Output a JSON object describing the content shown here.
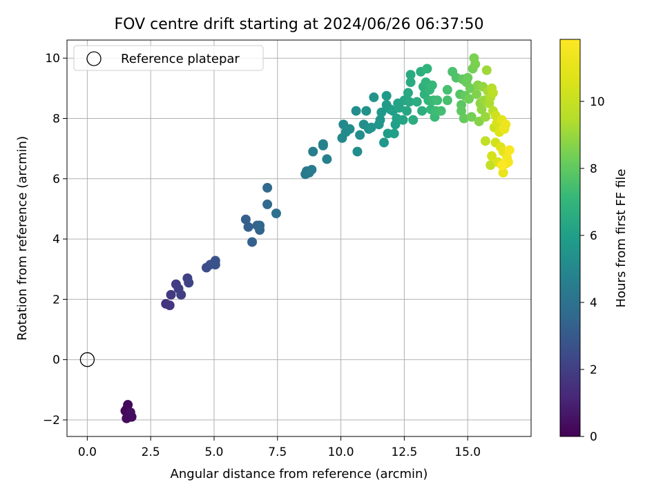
{
  "chart_data": {
    "type": "scatter",
    "title": "FOV centre drift starting at 2024/06/26 06:37:50",
    "xlabel": "Angular distance from reference (arcmin)",
    "ylabel": "Rotation from reference (arcmin)",
    "xlim": [
      -0.8,
      17.5
    ],
    "ylim": [
      -2.55,
      10.6
    ],
    "xticks": [
      0.0,
      2.5,
      5.0,
      7.5,
      10.0,
      12.5,
      15.0
    ],
    "xtick_labels": [
      "0.0",
      "2.5",
      "5.0",
      "7.5",
      "10.0",
      "12.5",
      "15.0"
    ],
    "yticks": [
      -2,
      0,
      2,
      4,
      6,
      8,
      10
    ],
    "ytick_labels": [
      "−2",
      "0",
      "2",
      "4",
      "6",
      "8",
      "10"
    ],
    "grid": true,
    "legend": {
      "position": "top-left",
      "entries": [
        "Reference platepar"
      ]
    },
    "reference_point": {
      "x": 0.0,
      "y": 0.0,
      "label": "Reference platepar"
    },
    "colorbar": {
      "label": "Hours from first FF file",
      "colormap": "viridis",
      "range": [
        0,
        11.85
      ],
      "ticks": [
        0,
        2,
        4,
        6,
        8,
        10
      ],
      "tick_labels": [
        "0",
        "2",
        "4",
        "6",
        "8",
        "10"
      ]
    },
    "points": [
      {
        "x": 1.55,
        "y": -1.65,
        "h": 0.1
      },
      {
        "x": 1.65,
        "y": -1.8,
        "h": 0.1
      },
      {
        "x": 1.6,
        "y": -1.5,
        "h": 0.2
      },
      {
        "x": 1.5,
        "y": -1.7,
        "h": 0.2
      },
      {
        "x": 1.55,
        "y": -1.95,
        "h": 0.3
      },
      {
        "x": 1.75,
        "y": -1.9,
        "h": 0.3
      },
      {
        "x": 1.7,
        "y": -1.75,
        "h": 0.35
      },
      {
        "x": 3.1,
        "y": 1.85,
        "h": 1.6
      },
      {
        "x": 3.25,
        "y": 1.8,
        "h": 1.7
      },
      {
        "x": 3.3,
        "y": 2.15,
        "h": 1.8
      },
      {
        "x": 3.5,
        "y": 2.5,
        "h": 1.9
      },
      {
        "x": 3.6,
        "y": 2.35,
        "h": 2.0
      },
      {
        "x": 3.7,
        "y": 2.15,
        "h": 2.0
      },
      {
        "x": 3.95,
        "y": 2.7,
        "h": 2.1
      },
      {
        "x": 4.0,
        "y": 2.55,
        "h": 2.2
      },
      {
        "x": 4.7,
        "y": 3.05,
        "h": 2.5
      },
      {
        "x": 4.85,
        "y": 3.15,
        "h": 2.6
      },
      {
        "x": 5.05,
        "y": 3.15,
        "h": 2.7
      },
      {
        "x": 5.05,
        "y": 3.28,
        "h": 2.7
      },
      {
        "x": 6.25,
        "y": 4.65,
        "h": 3.2
      },
      {
        "x": 6.35,
        "y": 4.4,
        "h": 3.2
      },
      {
        "x": 6.5,
        "y": 3.9,
        "h": 3.3
      },
      {
        "x": 6.7,
        "y": 4.45,
        "h": 3.4
      },
      {
        "x": 6.8,
        "y": 4.3,
        "h": 3.4
      },
      {
        "x": 6.8,
        "y": 4.45,
        "h": 3.5
      },
      {
        "x": 7.1,
        "y": 5.7,
        "h": 3.7
      },
      {
        "x": 7.1,
        "y": 5.15,
        "h": 3.7
      },
      {
        "x": 7.45,
        "y": 4.85,
        "h": 3.9
      },
      {
        "x": 8.6,
        "y": 6.15,
        "h": 4.3
      },
      {
        "x": 8.65,
        "y": 6.25,
        "h": 4.3
      },
      {
        "x": 8.75,
        "y": 6.2,
        "h": 4.4
      },
      {
        "x": 8.85,
        "y": 6.3,
        "h": 4.4
      },
      {
        "x": 8.9,
        "y": 6.9,
        "h": 4.5
      },
      {
        "x": 9.3,
        "y": 7.15,
        "h": 4.6
      },
      {
        "x": 9.3,
        "y": 7.1,
        "h": 4.7
      },
      {
        "x": 9.45,
        "y": 6.65,
        "h": 4.7
      },
      {
        "x": 10.05,
        "y": 7.35,
        "h": 5.0
      },
      {
        "x": 10.1,
        "y": 7.8,
        "h": 5.0
      },
      {
        "x": 10.2,
        "y": 7.55,
        "h": 5.1
      },
      {
        "x": 10.35,
        "y": 7.65,
        "h": 5.1
      },
      {
        "x": 10.6,
        "y": 8.25,
        "h": 5.2
      },
      {
        "x": 10.65,
        "y": 6.9,
        "h": 5.2
      },
      {
        "x": 10.75,
        "y": 7.45,
        "h": 5.3
      },
      {
        "x": 10.9,
        "y": 7.8,
        "h": 5.3
      },
      {
        "x": 11.0,
        "y": 8.25,
        "h": 5.4
      },
      {
        "x": 11.1,
        "y": 7.65,
        "h": 5.4
      },
      {
        "x": 11.2,
        "y": 7.7,
        "h": 5.5
      },
      {
        "x": 11.3,
        "y": 8.7,
        "h": 5.5
      },
      {
        "x": 11.5,
        "y": 7.8,
        "h": 5.6
      },
      {
        "x": 11.55,
        "y": 7.95,
        "h": 5.6
      },
      {
        "x": 11.6,
        "y": 8.2,
        "h": 5.7
      },
      {
        "x": 11.7,
        "y": 7.2,
        "h": 5.7
      },
      {
        "x": 11.8,
        "y": 8.45,
        "h": 5.8
      },
      {
        "x": 11.8,
        "y": 8.75,
        "h": 5.8
      },
      {
        "x": 11.85,
        "y": 7.5,
        "h": 5.9
      },
      {
        "x": 11.95,
        "y": 8.3,
        "h": 5.9
      },
      {
        "x": 12.05,
        "y": 8.25,
        "h": 6.0
      },
      {
        "x": 12.1,
        "y": 7.5,
        "h": 6.0
      },
      {
        "x": 12.15,
        "y": 7.8,
        "h": 6.0
      },
      {
        "x": 12.2,
        "y": 8.0,
        "h": 6.1
      },
      {
        "x": 12.25,
        "y": 8.5,
        "h": 6.1
      },
      {
        "x": 12.3,
        "y": 8.35,
        "h": 6.2
      },
      {
        "x": 12.45,
        "y": 7.95,
        "h": 6.2
      },
      {
        "x": 12.5,
        "y": 8.6,
        "h": 6.3
      },
      {
        "x": 12.6,
        "y": 8.25,
        "h": 6.3
      },
      {
        "x": 12.65,
        "y": 8.85,
        "h": 6.4
      },
      {
        "x": 12.7,
        "y": 8.55,
        "h": 6.4
      },
      {
        "x": 12.75,
        "y": 9.2,
        "h": 6.5
      },
      {
        "x": 12.75,
        "y": 9.45,
        "h": 6.5
      },
      {
        "x": 12.85,
        "y": 7.95,
        "h": 6.6
      },
      {
        "x": 13.0,
        "y": 8.55,
        "h": 6.6
      },
      {
        "x": 13.15,
        "y": 9.55,
        "h": 6.7
      },
      {
        "x": 13.2,
        "y": 8.25,
        "h": 6.7
      },
      {
        "x": 13.25,
        "y": 9.05,
        "h": 6.8
      },
      {
        "x": 13.3,
        "y": 8.8,
        "h": 6.8
      },
      {
        "x": 13.35,
        "y": 9.2,
        "h": 6.9
      },
      {
        "x": 13.4,
        "y": 9.65,
        "h": 6.9
      },
      {
        "x": 13.45,
        "y": 8.6,
        "h": 7.0
      },
      {
        "x": 13.5,
        "y": 8.95,
        "h": 7.0
      },
      {
        "x": 13.55,
        "y": 8.3,
        "h": 7.1
      },
      {
        "x": 13.6,
        "y": 9.1,
        "h": 7.1
      },
      {
        "x": 13.65,
        "y": 8.6,
        "h": 7.2
      },
      {
        "x": 13.7,
        "y": 8.05,
        "h": 7.2
      },
      {
        "x": 13.75,
        "y": 8.25,
        "h": 7.3
      },
      {
        "x": 13.8,
        "y": 8.6,
        "h": 7.3
      },
      {
        "x": 13.95,
        "y": 8.25,
        "h": 7.4
      },
      {
        "x": 14.2,
        "y": 8.6,
        "h": 7.5
      },
      {
        "x": 14.2,
        "y": 8.95,
        "h": 7.5
      },
      {
        "x": 14.4,
        "y": 9.55,
        "h": 7.6
      },
      {
        "x": 14.55,
        "y": 9.35,
        "h": 7.7
      },
      {
        "x": 14.7,
        "y": 8.8,
        "h": 7.8
      },
      {
        "x": 14.75,
        "y": 8.45,
        "h": 7.9
      },
      {
        "x": 14.75,
        "y": 8.25,
        "h": 8.0
      },
      {
        "x": 14.8,
        "y": 9.3,
        "h": 8.0
      },
      {
        "x": 14.85,
        "y": 8.0,
        "h": 8.1
      },
      {
        "x": 14.9,
        "y": 8.75,
        "h": 8.1
      },
      {
        "x": 14.95,
        "y": 9.2,
        "h": 8.2
      },
      {
        "x": 15.0,
        "y": 9.35,
        "h": 8.2
      },
      {
        "x": 15.05,
        "y": 8.65,
        "h": 8.3
      },
      {
        "x": 15.1,
        "y": 9.0,
        "h": 8.3
      },
      {
        "x": 15.15,
        "y": 8.05,
        "h": 8.4
      },
      {
        "x": 15.2,
        "y": 9.65,
        "h": 8.4
      },
      {
        "x": 15.25,
        "y": 10.0,
        "h": 8.5
      },
      {
        "x": 15.3,
        "y": 9.8,
        "h": 8.5
      },
      {
        "x": 15.35,
        "y": 8.8,
        "h": 8.6
      },
      {
        "x": 15.4,
        "y": 9.1,
        "h": 8.7
      },
      {
        "x": 15.45,
        "y": 7.9,
        "h": 8.7
      },
      {
        "x": 15.5,
        "y": 8.5,
        "h": 8.8
      },
      {
        "x": 15.55,
        "y": 8.3,
        "h": 8.9
      },
      {
        "x": 15.6,
        "y": 9.05,
        "h": 8.9
      },
      {
        "x": 15.65,
        "y": 8.6,
        "h": 9.0
      },
      {
        "x": 15.7,
        "y": 8.05,
        "h": 9.0
      },
      {
        "x": 15.75,
        "y": 9.6,
        "h": 9.1
      },
      {
        "x": 15.8,
        "y": 8.9,
        "h": 9.2
      },
      {
        "x": 15.85,
        "y": 8.5,
        "h": 9.3
      },
      {
        "x": 15.9,
        "y": 8.7,
        "h": 9.4
      },
      {
        "x": 15.95,
        "y": 9.0,
        "h": 9.5
      },
      {
        "x": 16.0,
        "y": 8.25,
        "h": 9.6
      },
      {
        "x": 16.0,
        "y": 8.85,
        "h": 9.7
      },
      {
        "x": 15.7,
        "y": 7.25,
        "h": 9.8
      },
      {
        "x": 15.9,
        "y": 6.45,
        "h": 9.9
      },
      {
        "x": 16.05,
        "y": 7.7,
        "h": 10.1
      },
      {
        "x": 16.1,
        "y": 8.1,
        "h": 10.2
      },
      {
        "x": 16.1,
        "y": 7.2,
        "h": 10.3
      },
      {
        "x": 15.95,
        "y": 6.75,
        "h": 10.4
      },
      {
        "x": 16.15,
        "y": 7.85,
        "h": 10.5
      },
      {
        "x": 16.2,
        "y": 6.55,
        "h": 10.6
      },
      {
        "x": 16.25,
        "y": 7.55,
        "h": 10.7
      },
      {
        "x": 16.3,
        "y": 7.05,
        "h": 10.8
      },
      {
        "x": 16.35,
        "y": 7.95,
        "h": 10.9
      },
      {
        "x": 16.4,
        "y": 6.9,
        "h": 11.0
      },
      {
        "x": 16.4,
        "y": 6.2,
        "h": 11.1
      },
      {
        "x": 16.45,
        "y": 7.65,
        "h": 11.2
      },
      {
        "x": 16.5,
        "y": 7.8,
        "h": 11.3
      },
      {
        "x": 16.5,
        "y": 6.5,
        "h": 11.4
      },
      {
        "x": 16.55,
        "y": 6.7,
        "h": 11.5
      },
      {
        "x": 16.6,
        "y": 6.55,
        "h": 11.6
      },
      {
        "x": 16.65,
        "y": 6.95,
        "h": 11.7
      },
      {
        "x": 16.35,
        "y": 6.45,
        "h": 11.8
      }
    ]
  }
}
